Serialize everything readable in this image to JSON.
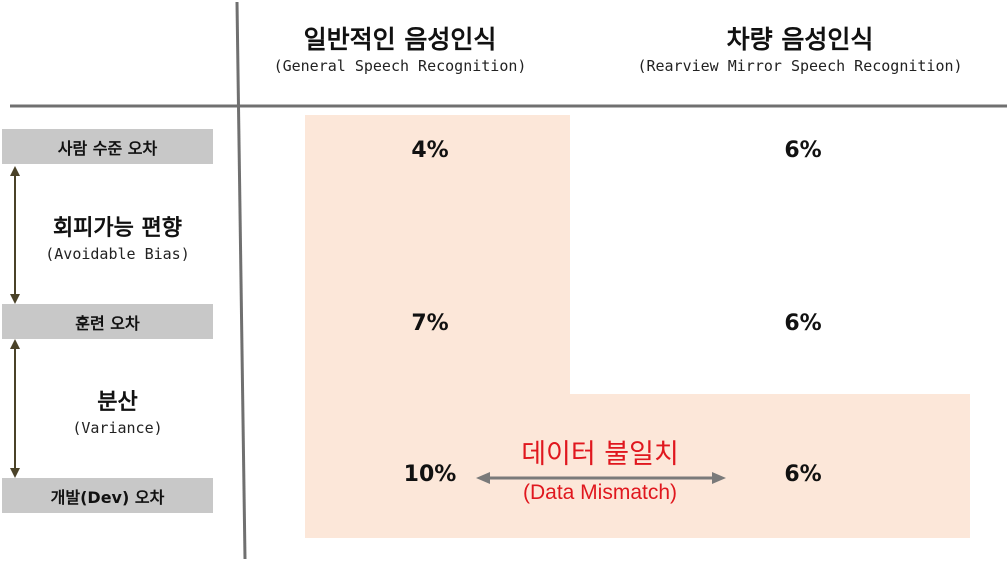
{
  "headers": {
    "general": {
      "title": "일반적인 음성인식",
      "subtitle": "(General Speech Recognition)"
    },
    "vehicle": {
      "title": "차량 음성인식",
      "subtitle": "(Rearview Mirror Speech Recognition)"
    }
  },
  "rows": {
    "human": {
      "label": "사람 수준 오차",
      "general": "4%",
      "vehicle": "6%"
    },
    "train": {
      "label": "훈련 오차",
      "general": "7%",
      "vehicle": "6%"
    },
    "dev": {
      "label": "개발(Dev) 오차",
      "general": "10%",
      "vehicle": "6%"
    }
  },
  "side": {
    "bias": {
      "title": "회피가능 편향",
      "subtitle": "(Avoidable Bias)"
    },
    "variance": {
      "title": "분산",
      "subtitle": "(Variance)"
    }
  },
  "mismatch": {
    "title": "데이터 불일치",
    "subtitle": "(Data Mismatch)"
  },
  "colors": {
    "highlight": "#fce7d9",
    "label_bg": "#c8c8c8",
    "annotation": "#e0171e",
    "arrow": "#4a4228",
    "divider": "#707070"
  }
}
